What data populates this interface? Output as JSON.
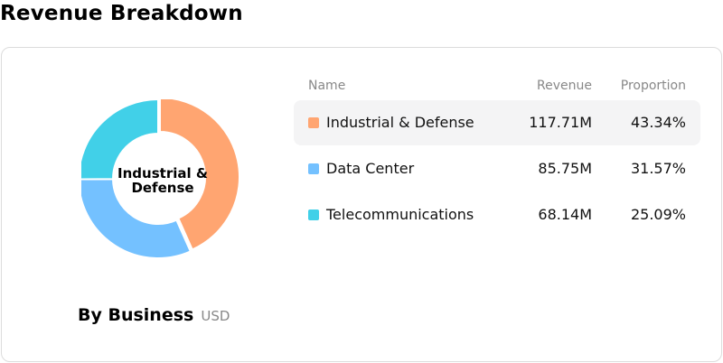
{
  "page": {
    "title": "Revenue Breakdown"
  },
  "chart_data": {
    "type": "pie",
    "subtype": "donut",
    "center_label": "Industrial & Defense",
    "caption": "By Business",
    "unit": "USD",
    "categories": [
      "Industrial & Defense",
      "Data Center",
      "Telecommunications"
    ],
    "values": [
      117.71,
      85.75,
      68.14
    ],
    "value_labels": [
      "117.71M",
      "85.75M",
      "68.14M"
    ],
    "proportions": [
      "43.34%",
      "31.57%",
      "25.09%"
    ],
    "shares": [
      43.34,
      31.57,
      25.09
    ],
    "colors": [
      "#ffa571",
      "#74c1ff",
      "#41d0e8"
    ],
    "highlighted": "Industrial & Defense"
  },
  "table": {
    "headers": {
      "name": "Name",
      "revenue": "Revenue",
      "proportion": "Proportion"
    },
    "rows": [
      {
        "name": "Industrial & Defense",
        "revenue": "117.71M",
        "proportion": "43.34%",
        "color": "#ffa571"
      },
      {
        "name": "Data Center",
        "revenue": "85.75M",
        "proportion": "31.57%",
        "color": "#74c1ff"
      },
      {
        "name": "Telecommunications",
        "revenue": "68.14M",
        "proportion": "25.09%",
        "color": "#41d0e8"
      }
    ]
  }
}
